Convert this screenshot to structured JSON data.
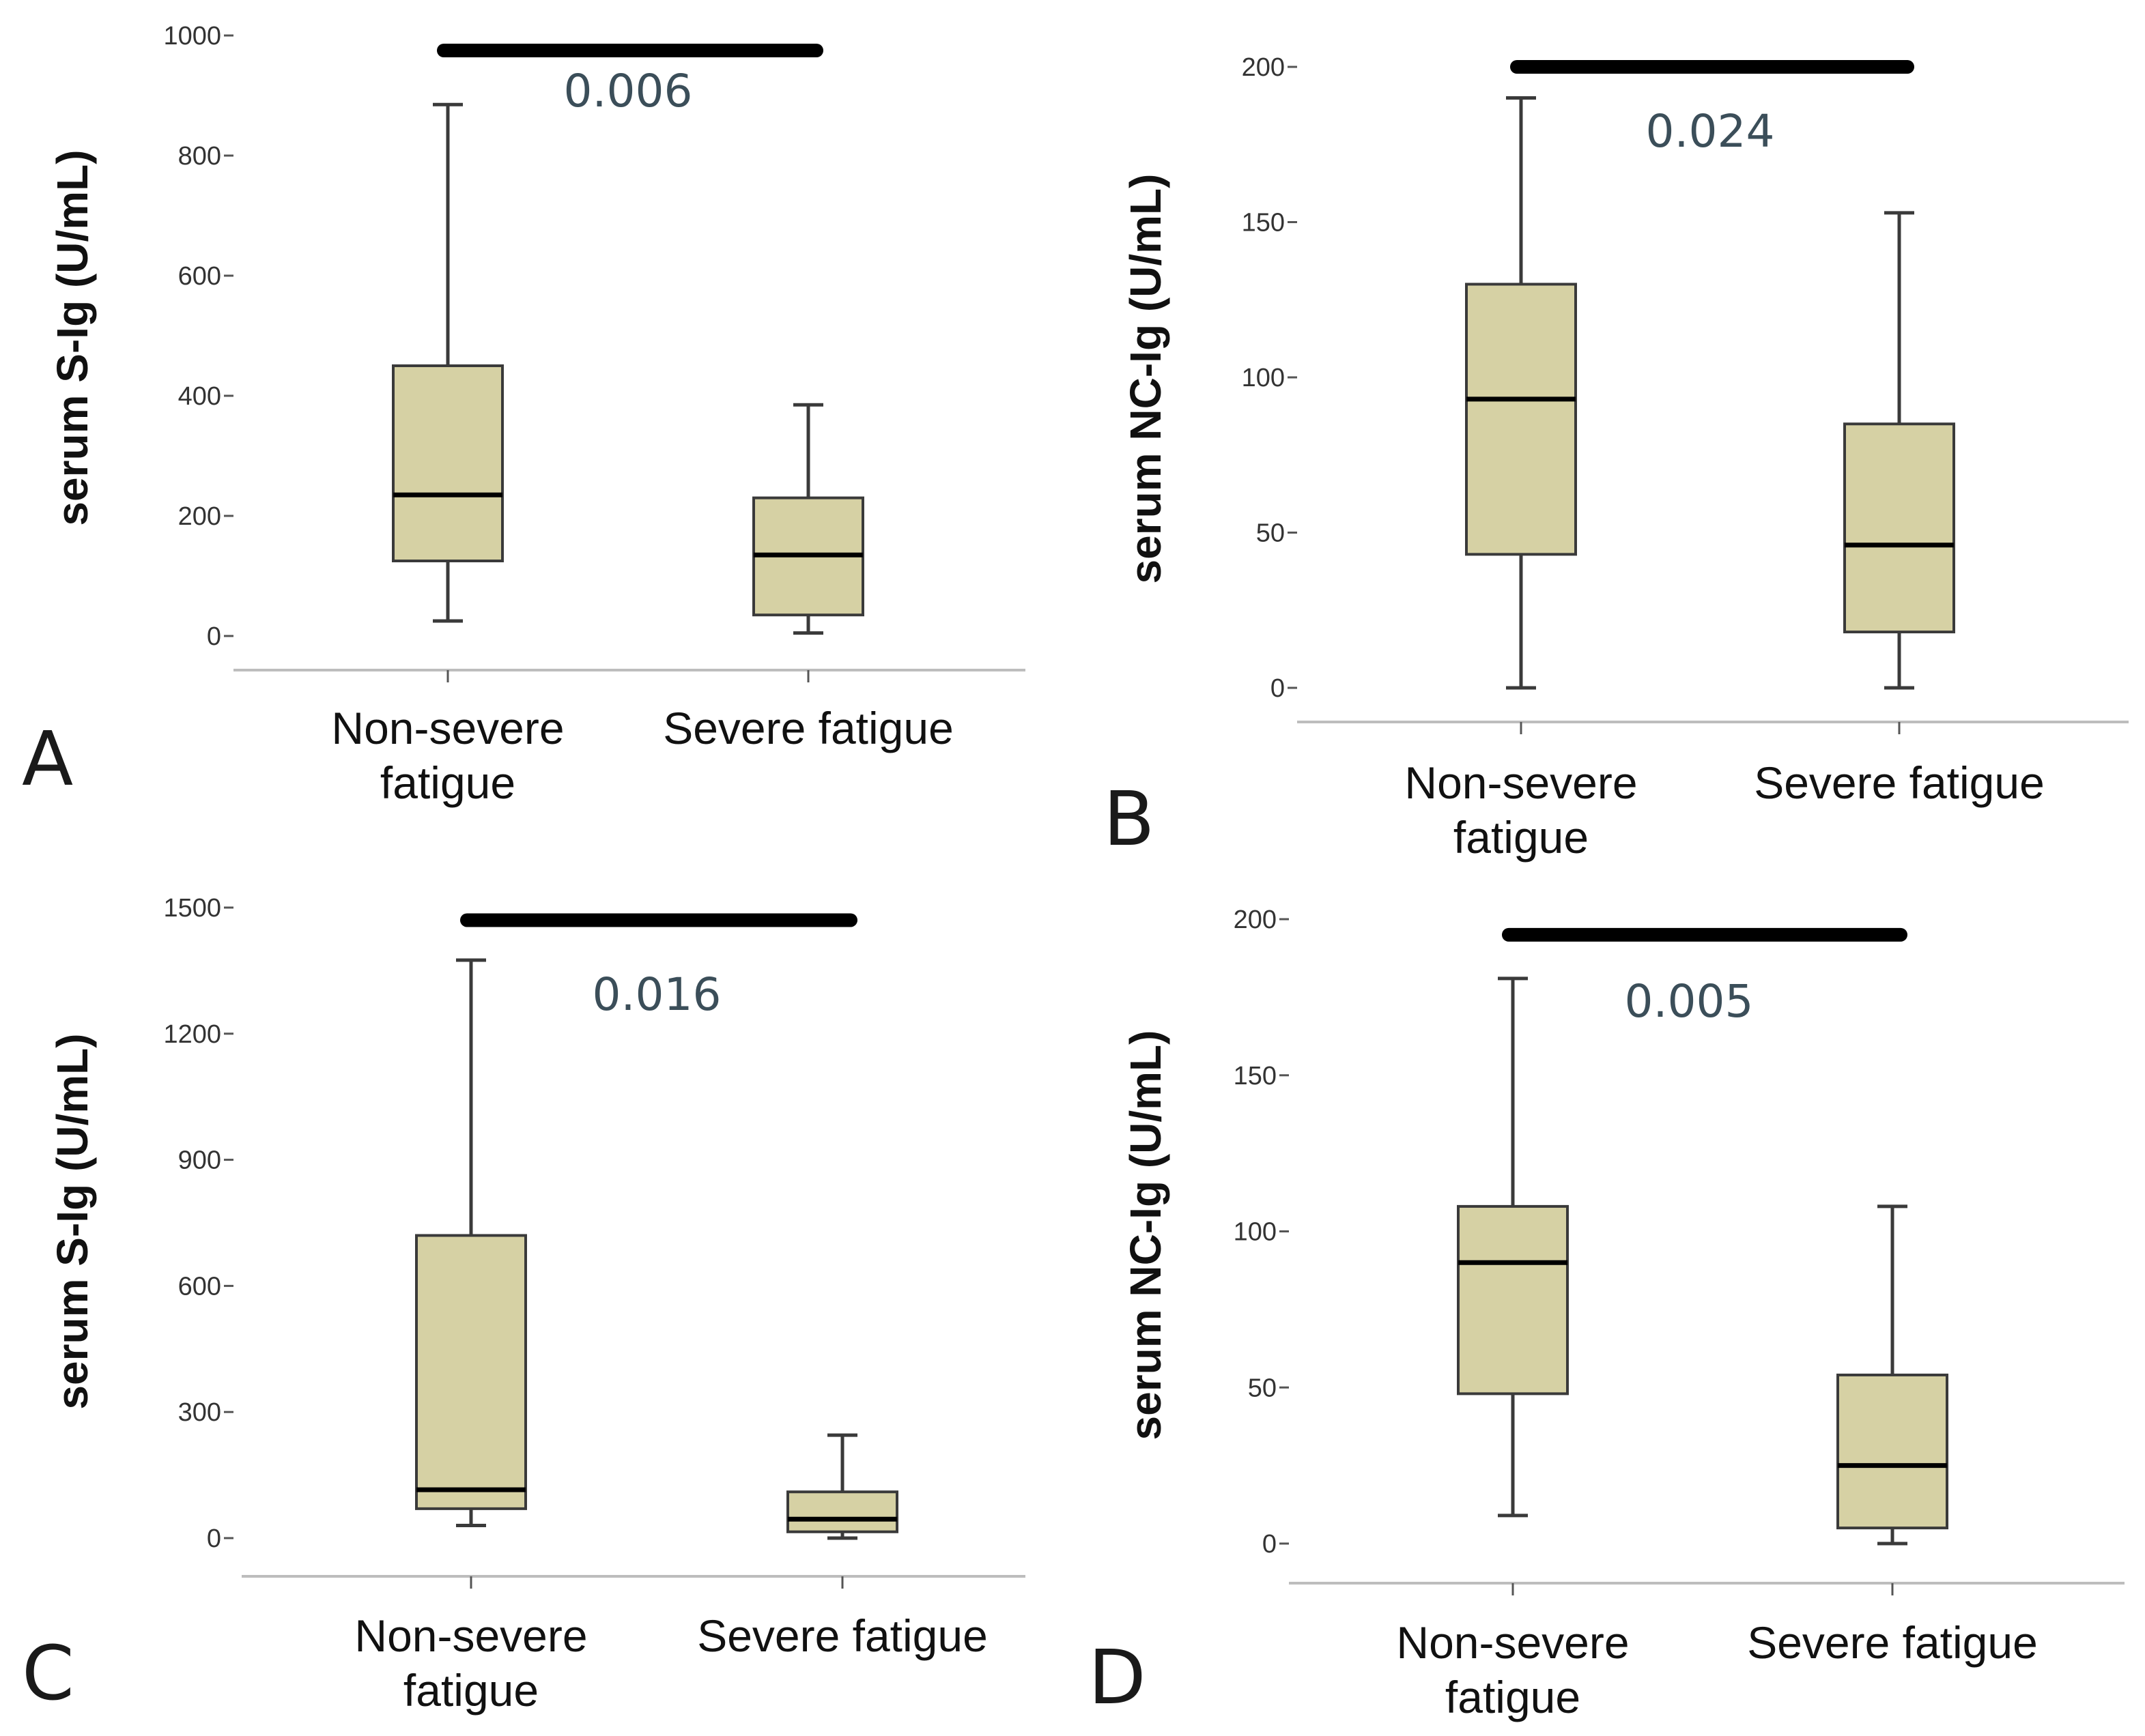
{
  "chart_data": [
    {
      "panel": "A",
      "type": "box",
      "ylabel": "serum S-Ig (U/mL)",
      "yticks": [
        0,
        200,
        400,
        600,
        800,
        1000
      ],
      "ylim": [
        0,
        1000
      ],
      "categories": [
        [
          "Non-severe",
          "fatigue"
        ],
        [
          "Severe fatigue"
        ]
      ],
      "boxes": [
        {
          "min": 25,
          "q1": 125,
          "median": 235,
          "q3": 450,
          "max": 885
        },
        {
          "min": 5,
          "q1": 35,
          "median": 135,
          "q3": 230,
          "max": 385
        }
      ],
      "significance": {
        "p_value": "0.006",
        "bar_value": 975
      }
    },
    {
      "panel": "B",
      "type": "box",
      "ylabel": "serum NC-Ig (U/mL)",
      "yticks": [
        0,
        50,
        100,
        150,
        200
      ],
      "ylim": [
        0,
        200
      ],
      "categories": [
        [
          "Non-severe",
          "fatigue"
        ],
        [
          "Severe fatigue"
        ]
      ],
      "boxes": [
        {
          "min": 0,
          "q1": 43,
          "median": 93,
          "q3": 130,
          "max": 190
        },
        {
          "min": 0,
          "q1": 18,
          "median": 46,
          "q3": 85,
          "max": 153
        }
      ],
      "significance": {
        "p_value": "0.024",
        "bar_value": 200
      }
    },
    {
      "panel": "C",
      "type": "box",
      "ylabel": "serum S-Ig (U/mL)",
      "yticks": [
        0,
        300,
        600,
        900,
        1200,
        1500
      ],
      "ylim": [
        0,
        1500
      ],
      "categories": [
        [
          "Non-severe",
          "fatigue"
        ],
        [
          "Severe fatigue"
        ]
      ],
      "boxes": [
        {
          "min": 30,
          "q1": 70,
          "median": 115,
          "q3": 720,
          "max": 1375
        },
        {
          "min": 0,
          "q1": 15,
          "median": 45,
          "q3": 110,
          "max": 245
        }
      ],
      "significance": {
        "p_value": "0.016",
        "bar_value": 1470
      }
    },
    {
      "panel": "D",
      "type": "box",
      "ylabel": "serum NC-Ig (U/mL)",
      "yticks": [
        0,
        50,
        100,
        150,
        200
      ],
      "ylim": [
        0,
        200
      ],
      "categories": [
        [
          "Non-severe",
          "fatigue"
        ],
        [
          "Severe fatigue"
        ]
      ],
      "boxes": [
        {
          "min": 9,
          "q1": 48,
          "median": 90,
          "q3": 108,
          "max": 181
        },
        {
          "min": 0,
          "q1": 5,
          "median": 25,
          "q3": 54,
          "max": 108
        }
      ],
      "significance": {
        "p_value": "0.005",
        "bar_value": 195
      }
    }
  ],
  "colors": {
    "box_fill": "#d6d1a4",
    "box_stroke": "#3a3a3a",
    "axis": "#bdbdbd",
    "pvalue_text": "#3b4e59"
  }
}
